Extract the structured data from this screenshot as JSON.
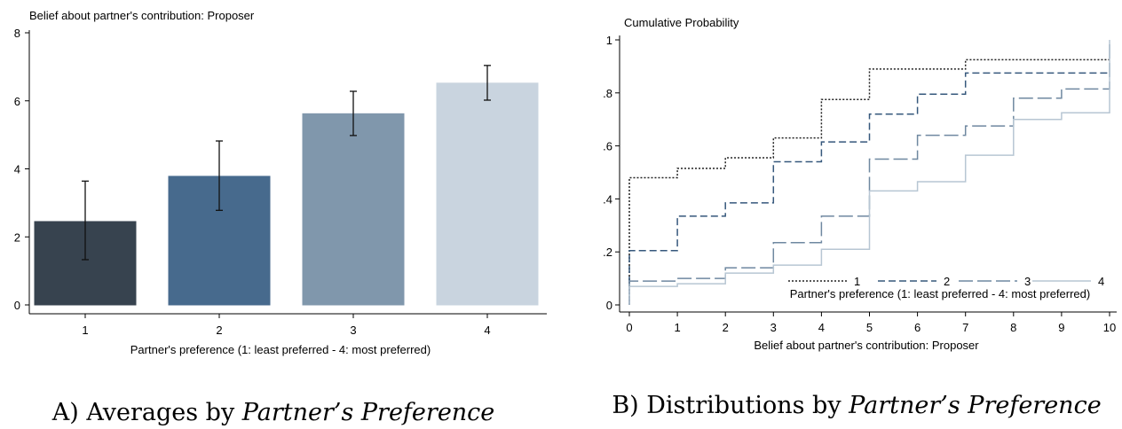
{
  "chart_data": [
    {
      "type": "bar",
      "title": "Belief about partner's contribution: Proposer",
      "xlabel": "Partner's preference (1: least preferred - 4: most preferred)",
      "ylabel": "",
      "ylim": [
        0,
        8
      ],
      "yticks": [
        0,
        2,
        4,
        6,
        8
      ],
      "categories": [
        "1",
        "2",
        "3",
        "4"
      ],
      "values": [
        2.45,
        3.78,
        5.62,
        6.52
      ],
      "error_low": [
        1.33,
        2.78,
        4.98,
        6.02
      ],
      "error_high": [
        3.64,
        4.82,
        6.28,
        7.04
      ],
      "colors": [
        "#37434f",
        "#476a8d",
        "#8097ac",
        "#c9d4df"
      ],
      "grid": false,
      "caption_prefix": "A) Averages by ",
      "caption_italic": "Partner’s Preference"
    },
    {
      "type": "line",
      "title": "Cumulative Probability",
      "xlabel": "Belief about partner's contribution: Proposer",
      "ylabel": "",
      "xlim": [
        0,
        10
      ],
      "ylim": [
        0,
        1
      ],
      "xticks": [
        "0",
        "1",
        "2",
        "3",
        "4",
        "5",
        "6",
        "7",
        "8",
        "9",
        "10"
      ],
      "yticks": [
        "0",
        ".2",
        ".4",
        ".6",
        ".8",
        "1"
      ],
      "step": true,
      "x": [
        0,
        1,
        2,
        3,
        4,
        5,
        6,
        7,
        8,
        9,
        10
      ],
      "series": [
        {
          "name": "1",
          "values": [
            0.48,
            0.515,
            0.555,
            0.63,
            0.775,
            0.89,
            0.89,
            0.925,
            0.925,
            0.925,
            0.925
          ],
          "color": "#222222",
          "dash": "2,2"
        },
        {
          "name": "2",
          "values": [
            0.205,
            0.335,
            0.385,
            0.54,
            0.615,
            0.72,
            0.795,
            0.875,
            0.875,
            0.875,
            0.875
          ],
          "color": "#36587c",
          "dash": "8,4"
        },
        {
          "name": "3",
          "values": [
            0.09,
            0.1,
            0.14,
            0.235,
            0.335,
            0.55,
            0.64,
            0.675,
            0.78,
            0.815,
            1.0
          ],
          "color": "#6f88a0",
          "dash": "16,5"
        },
        {
          "name": "4",
          "values": [
            0.07,
            0.08,
            0.12,
            0.15,
            0.21,
            0.43,
            0.465,
            0.565,
            0.7,
            0.725,
            1.0
          ],
          "color": "#b7c6d3",
          "dash": ""
        }
      ],
      "legend_title": "Partner's preference (1: least preferred - 4: most preferred)",
      "legend_position": "bottom-right",
      "grid": false,
      "caption_prefix": "B) Distributions by ",
      "caption_italic": "Partner’s Preference"
    }
  ]
}
